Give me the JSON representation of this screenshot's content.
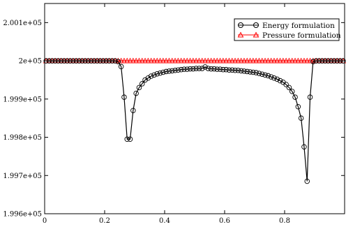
{
  "chart_data": {
    "type": "line",
    "title": "",
    "xlabel": "",
    "ylabel": "",
    "xlim": [
      0,
      1
    ],
    "ylim": [
      199600,
      200150
    ],
    "grid": false,
    "legend_position": "top-right",
    "x_ticks": [
      0,
      0.2,
      0.4,
      0.6,
      0.8
    ],
    "x_tick_labels": [
      "0",
      "0.2",
      "0.4",
      "0.6",
      "0.8"
    ],
    "y_ticks": [
      199600,
      199700,
      199800,
      199900,
      200000,
      200100
    ],
    "y_tick_labels": [
      "1.996e+05",
      "1.997e+05",
      "1.998e+05",
      "1.999e+05",
      "2e+05",
      "2.001e+05"
    ],
    "series": [
      {
        "name": "Energy formulation",
        "color": "#000000",
        "marker": "circle",
        "x": [
          0.005,
          0.015,
          0.025,
          0.035,
          0.045,
          0.055,
          0.065,
          0.075,
          0.085,
          0.095,
          0.105,
          0.115,
          0.125,
          0.135,
          0.145,
          0.155,
          0.165,
          0.175,
          0.185,
          0.195,
          0.205,
          0.215,
          0.225,
          0.235,
          0.245,
          0.255,
          0.265,
          0.275,
          0.285,
          0.295,
          0.305,
          0.315,
          0.325,
          0.335,
          0.345,
          0.355,
          0.365,
          0.375,
          0.385,
          0.395,
          0.405,
          0.415,
          0.425,
          0.435,
          0.445,
          0.455,
          0.465,
          0.475,
          0.485,
          0.495,
          0.505,
          0.515,
          0.525,
          0.535,
          0.545,
          0.555,
          0.565,
          0.575,
          0.585,
          0.595,
          0.605,
          0.615,
          0.625,
          0.635,
          0.645,
          0.655,
          0.665,
          0.675,
          0.685,
          0.695,
          0.705,
          0.715,
          0.725,
          0.735,
          0.745,
          0.755,
          0.765,
          0.775,
          0.785,
          0.795,
          0.805,
          0.815,
          0.825,
          0.835,
          0.845,
          0.855,
          0.865,
          0.875,
          0.885,
          0.895,
          0.905,
          0.915,
          0.925,
          0.935,
          0.945,
          0.955,
          0.965,
          0.975,
          0.985,
          0.995
        ],
        "y": [
          200000,
          200000,
          200000,
          200000,
          200000,
          200000,
          200000,
          200000,
          200000,
          200000,
          200000,
          200000,
          200000,
          200000,
          200000,
          200000,
          200000,
          200000,
          200000,
          200000,
          200000,
          200000,
          200000,
          200000,
          199998,
          199985,
          199905,
          199795,
          199795,
          199870,
          199915,
          199930,
          199940,
          199950,
          199955,
          199960,
          199963,
          199966,
          199968,
          199970,
          199972,
          199973,
          199974,
          199975,
          199976,
          199977,
          199978,
          199978,
          199979,
          199979,
          199980,
          199980,
          199980,
          199984,
          199980,
          199979,
          199979,
          199978,
          199978,
          199977,
          199977,
          199976,
          199976,
          199975,
          199975,
          199974,
          199973,
          199972,
          199971,
          199970,
          199969,
          199967,
          199965,
          199963,
          199961,
          199958,
          199955,
          199952,
          199948,
          199944,
          199938,
          199930,
          199920,
          199905,
          199880,
          199850,
          199775,
          199685,
          199905,
          199998,
          200000,
          200000,
          200000,
          200000,
          200000,
          200000,
          200000,
          200000,
          200000,
          200000
        ]
      },
      {
        "name": "Pressure formulation",
        "color": "#ff0000",
        "marker": "triangle",
        "x": [
          0.005,
          0.015,
          0.025,
          0.035,
          0.045,
          0.055,
          0.065,
          0.075,
          0.085,
          0.095,
          0.105,
          0.115,
          0.125,
          0.135,
          0.145,
          0.155,
          0.165,
          0.175,
          0.185,
          0.195,
          0.205,
          0.215,
          0.225,
          0.235,
          0.245,
          0.255,
          0.265,
          0.275,
          0.285,
          0.295,
          0.305,
          0.315,
          0.325,
          0.335,
          0.345,
          0.355,
          0.365,
          0.375,
          0.385,
          0.395,
          0.405,
          0.415,
          0.425,
          0.435,
          0.445,
          0.455,
          0.465,
          0.475,
          0.485,
          0.495,
          0.505,
          0.515,
          0.525,
          0.535,
          0.545,
          0.555,
          0.565,
          0.575,
          0.585,
          0.595,
          0.605,
          0.615,
          0.625,
          0.635,
          0.645,
          0.655,
          0.665,
          0.675,
          0.685,
          0.695,
          0.705,
          0.715,
          0.725,
          0.735,
          0.745,
          0.755,
          0.765,
          0.775,
          0.785,
          0.795,
          0.805,
          0.815,
          0.825,
          0.835,
          0.845,
          0.855,
          0.865,
          0.875,
          0.885,
          0.895,
          0.905,
          0.915,
          0.925,
          0.935,
          0.945,
          0.955,
          0.965,
          0.975,
          0.985,
          0.995
        ],
        "y": [
          200000,
          200000,
          200000,
          200000,
          200000,
          200000,
          200000,
          200000,
          200000,
          200000,
          200000,
          200000,
          200000,
          200000,
          200000,
          200000,
          200000,
          200000,
          200000,
          200000,
          200000,
          200000,
          200000,
          200000,
          200000,
          200000,
          200000,
          200000,
          200000,
          200000,
          200000,
          200000,
          200000,
          200000,
          200000,
          200000,
          200000,
          200000,
          200000,
          200000,
          200000,
          200000,
          200000,
          200000,
          200000,
          200000,
          200000,
          200000,
          200000,
          200000,
          200000,
          200000,
          200000,
          200000,
          200000,
          200000,
          200000,
          200000,
          200000,
          200000,
          200000,
          200000,
          200000,
          200000,
          200000,
          200000,
          200000,
          200000,
          200000,
          200000,
          200000,
          200000,
          200000,
          200000,
          200000,
          200000,
          200000,
          200000,
          200000,
          200000,
          200000,
          200000,
          200000,
          200000,
          200000,
          200000,
          200000,
          200000,
          200000,
          200000,
          200000,
          200000,
          200000,
          200000,
          200000,
          200000,
          200000,
          200000,
          200000,
          200000
        ]
      }
    ]
  }
}
